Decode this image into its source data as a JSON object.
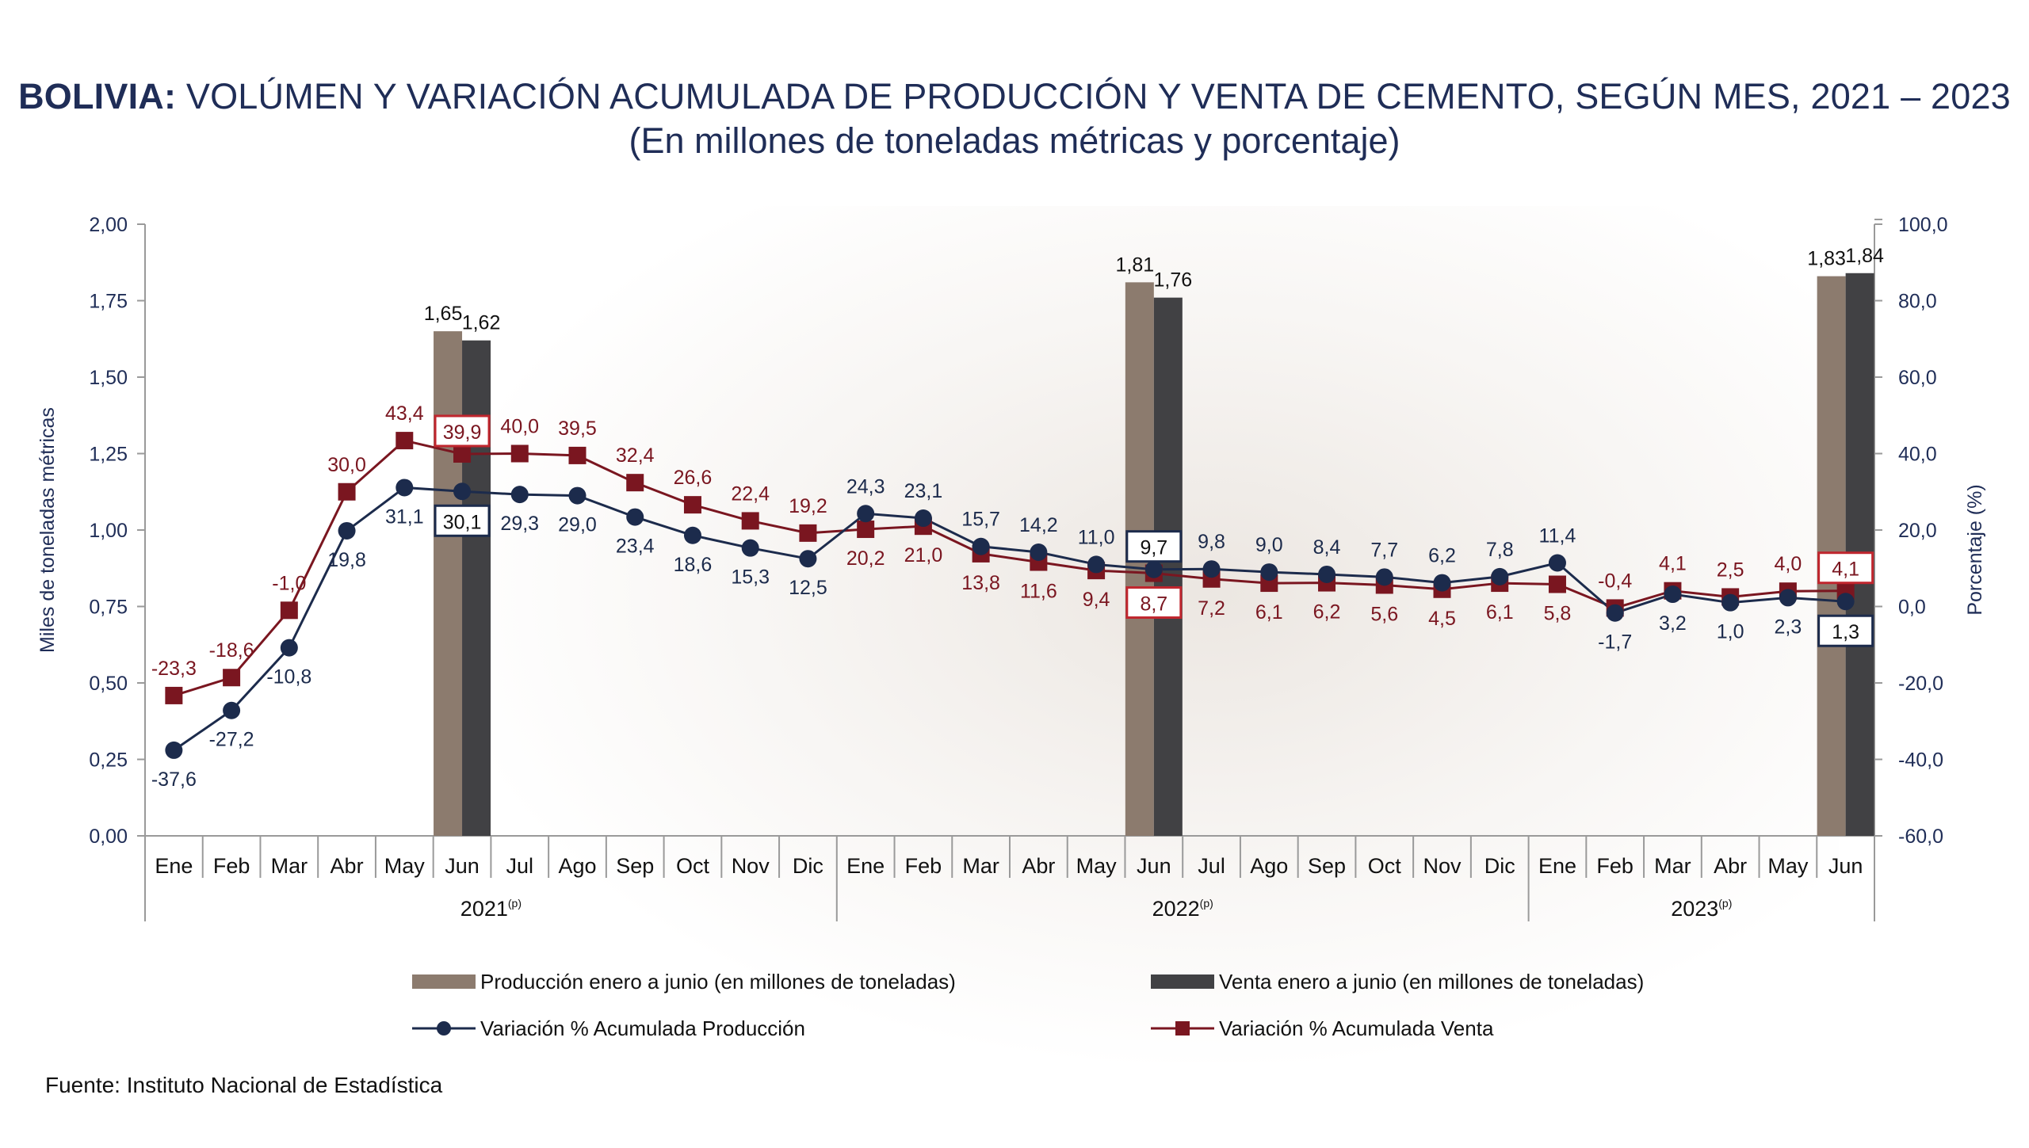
{
  "title": {
    "bold": "BOLIVIA:",
    "rest": "VOLÚMEN Y VARIACIÓN ACUMULADA DE PRODUCCIÓN Y VENTA DE CEMENTO, SEGÚN MES, 2021 – 2023",
    "subtitle": "(En millones de toneladas métricas y porcentaje)"
  },
  "source": "Fuente: Instituto Nacional de Estadística",
  "colors": {
    "production_bar": "#8c7b6e",
    "sales_bar": "#414144",
    "production_line": "#1c2b4c",
    "sales_line": "#7a1620",
    "axis_text": "#1f2d57"
  },
  "chart_data": {
    "type": "bar+line",
    "ylabel_left": "Miles de toneladas métricas",
    "ylabel_right": "Porcentaje (%)",
    "ylim_left": [
      0,
      2
    ],
    "ylim_right": [
      -60,
      100
    ],
    "yticks_left": [
      "0,00",
      "0,25",
      "0,50",
      "0,75",
      "1,00",
      "1,25",
      "1,50",
      "1,75",
      "2,00"
    ],
    "yticks_right": [
      "-60,0",
      "-40,0",
      "-20,0",
      "0,0",
      "20,0",
      "40,0",
      "60,0",
      "80,0",
      "100,0"
    ],
    "categories": [
      "Ene",
      "Feb",
      "Mar",
      "Abr",
      "May",
      "Jun",
      "Jul",
      "Ago",
      "Sep",
      "Oct",
      "Nov",
      "Dic",
      "Ene",
      "Feb",
      "Mar",
      "Abr",
      "May",
      "Jun",
      "Jul",
      "Ago",
      "Sep",
      "Oct",
      "Nov",
      "Dic",
      "Ene",
      "Feb",
      "Mar",
      "Abr",
      "May",
      "Jun"
    ],
    "years": [
      {
        "label": "2021",
        "sup": "(p)",
        "start": 0,
        "end": 11
      },
      {
        "label": "2022",
        "sup": "(p)",
        "start": 12,
        "end": 23
      },
      {
        "label": "2023",
        "sup": "(p)",
        "start": 24,
        "end": 29
      }
    ],
    "bars": [
      {
        "index": 5,
        "production": 1.65,
        "sales": 1.62,
        "production_label": "1,65",
        "sales_label": "1,62"
      },
      {
        "index": 17,
        "production": 1.81,
        "sales": 1.76,
        "production_label": "1,81",
        "sales_label": "1,76"
      },
      {
        "index": 29,
        "production": 1.83,
        "sales": 1.84,
        "production_label": "1,83",
        "sales_label": "1,84"
      }
    ],
    "series": [
      {
        "name": "Variación % Acumulada Producción",
        "values": [
          -37.6,
          -27.2,
          -10.8,
          19.8,
          31.1,
          30.1,
          29.3,
          29.0,
          23.4,
          18.6,
          15.3,
          12.5,
          24.3,
          23.1,
          15.7,
          14.2,
          11.0,
          9.7,
          9.8,
          9.0,
          8.4,
          7.7,
          6.2,
          7.8,
          11.4,
          -1.7,
          3.2,
          1.0,
          2.3,
          1.3
        ],
        "labels": [
          "-37,6",
          "-27,2",
          "-10,8",
          "19,8",
          "31,1",
          "30,1",
          "29,3",
          "29,0",
          "23,4",
          "18,6",
          "15,3",
          "12,5",
          "24,3",
          "23,1",
          "15,7",
          "14,2",
          "11,0",
          "9,7",
          "9,8",
          "9,0",
          "8,4",
          "7,7",
          "6,2",
          "7,8",
          "11,4",
          "-1,7",
          "3,2",
          "1,0",
          "2,3",
          "1,3"
        ]
      },
      {
        "name": "Variación % Acumulada Venta",
        "values": [
          -23.3,
          -18.6,
          -1.0,
          30.0,
          43.4,
          39.9,
          40.0,
          39.5,
          32.4,
          26.6,
          22.4,
          19.2,
          20.2,
          21.0,
          13.8,
          11.6,
          9.4,
          8.7,
          7.2,
          6.1,
          6.2,
          5.6,
          4.5,
          6.1,
          5.8,
          -0.4,
          4.1,
          2.5,
          4.0,
          4.1
        ],
        "labels": [
          "-23,3",
          "-18,6",
          "-1,0",
          "30,0",
          "43,4",
          "39,9",
          "40,0",
          "39,5",
          "32,4",
          "26,6",
          "22,4",
          "19,2",
          "20,2",
          "21,0",
          "13,8",
          "11,6",
          "9,4",
          "8,7",
          "7,2",
          "6,1",
          "6,2",
          "5,6",
          "4,5",
          "6,1",
          "5,8",
          "-0,4",
          "4,1",
          "2,5",
          "4,0",
          "4,1"
        ]
      }
    ],
    "legend": [
      "Producción enero a junio (en millones de toneladas)",
      "Venta enero a junio (en millones de toneladas)",
      "Variación % Acumulada Producción",
      "Variación % Acumulada Venta"
    ]
  }
}
